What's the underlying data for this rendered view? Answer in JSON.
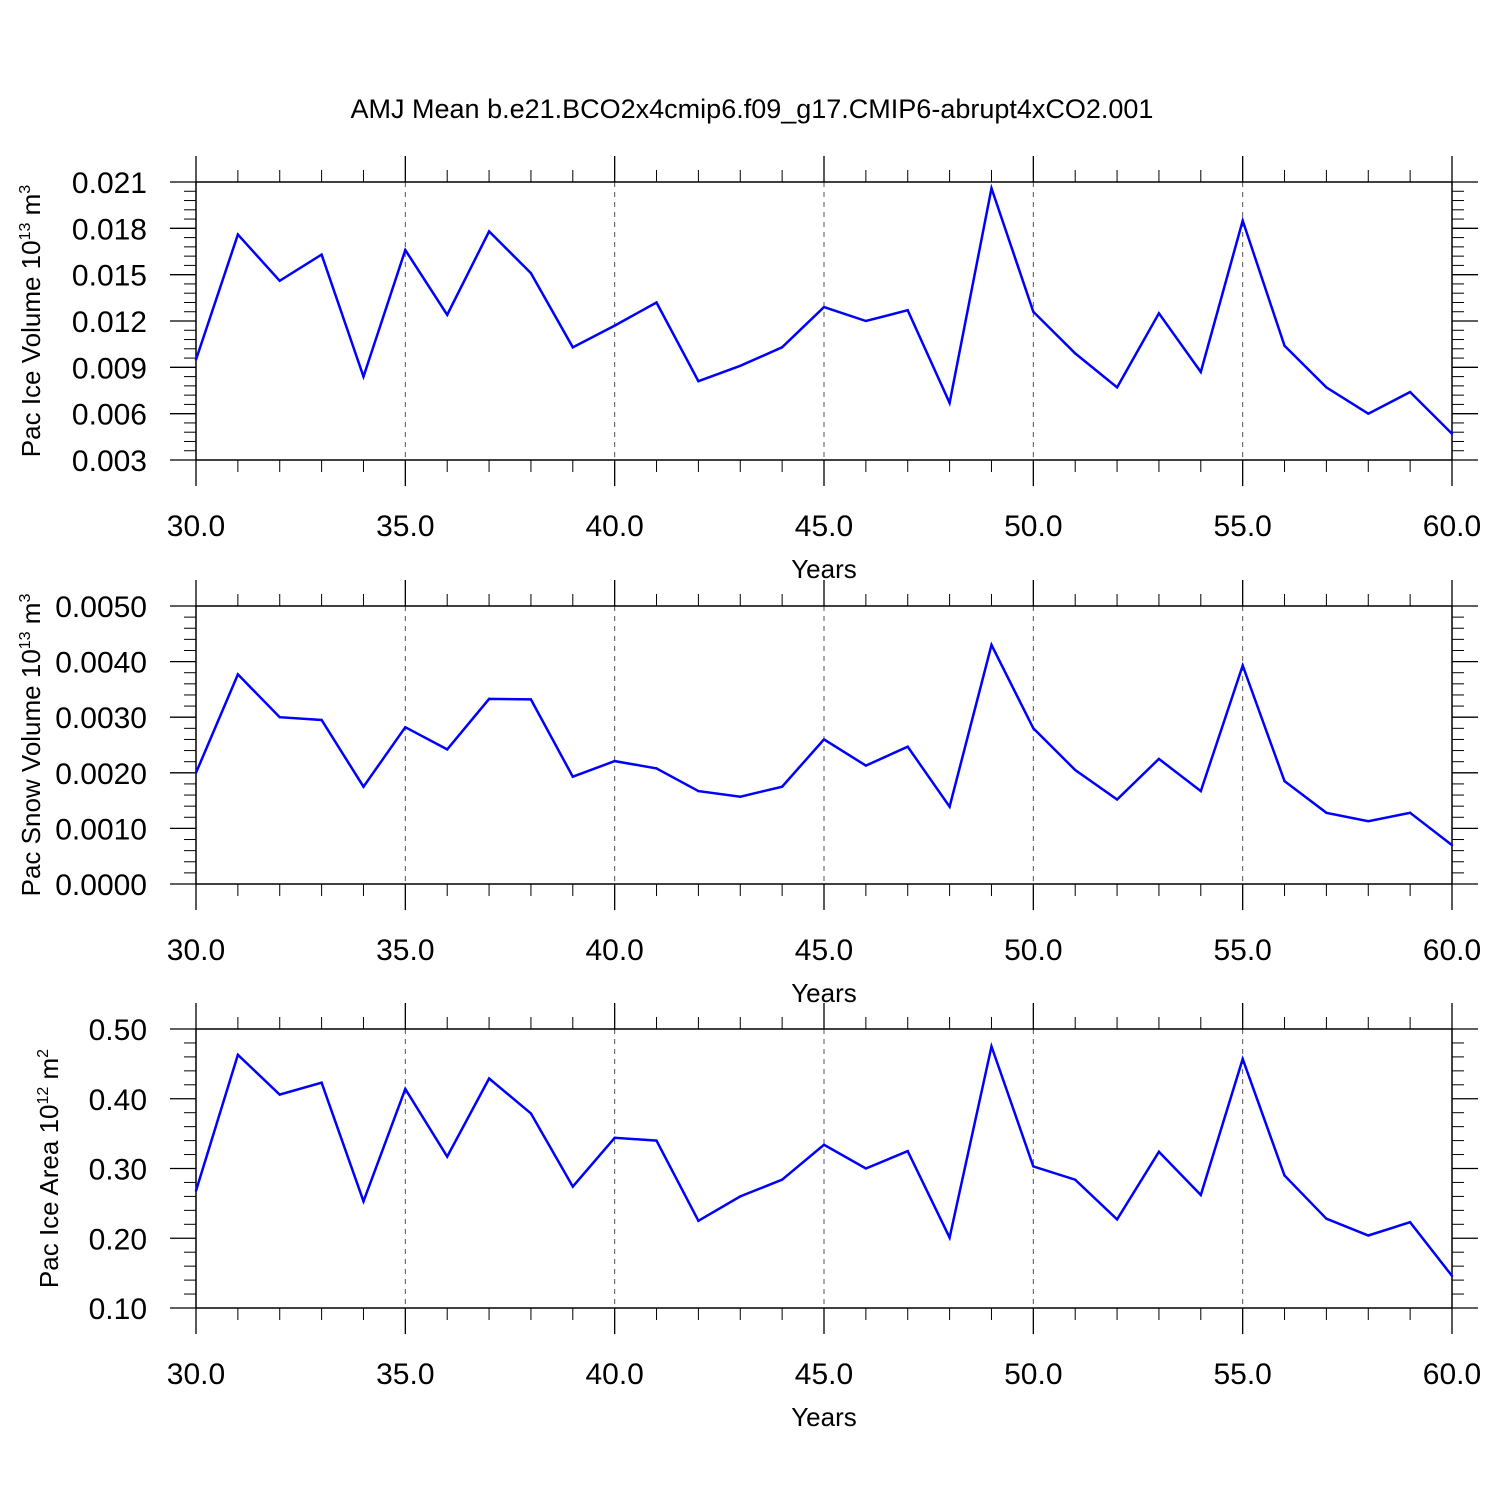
{
  "title": "AMJ Mean b.e21.BCO2x4cmip6.f09_g17.CMIP6-abrupt4xCO2.001",
  "colors": {
    "line": "#0000ff",
    "axis": "#000000",
    "grid": "#555555"
  },
  "chart_data": [
    {
      "type": "line",
      "ylabel": "Pac Ice Volume 10",
      "ylabel_exp": "13",
      "ylabel_unit": " m",
      "ylabel_unit_exp": "3",
      "xlabel": "Years",
      "xlim": [
        30,
        60
      ],
      "ylim": [
        0.003,
        0.021
      ],
      "x_ticks": [
        "30.0",
        "35.0",
        "40.0",
        "45.0",
        "50.0",
        "55.0",
        "60.0"
      ],
      "y_ticks": [
        "0.003",
        "0.006",
        "0.009",
        "0.012",
        "0.015",
        "0.018",
        "0.021"
      ],
      "grid": "vertical dashed at major x ticks",
      "x": [
        30,
        31,
        32,
        33,
        34,
        35,
        36,
        37,
        38,
        39,
        40,
        41,
        42,
        43,
        44,
        45,
        46,
        47,
        48,
        49,
        50,
        51,
        52,
        53,
        54,
        55,
        56,
        57,
        58,
        59,
        60
      ],
      "values": [
        0.0095,
        0.0176,
        0.0146,
        0.0163,
        0.0084,
        0.0166,
        0.0124,
        0.0178,
        0.0151,
        0.0103,
        0.0117,
        0.0132,
        0.0081,
        0.0091,
        0.0103,
        0.0129,
        0.012,
        0.0127,
        0.0067,
        0.0206,
        0.0126,
        0.0099,
        0.0077,
        0.0125,
        0.0087,
        0.0185,
        0.0104,
        0.0077,
        0.006,
        0.0074,
        0.0047
      ]
    },
    {
      "type": "line",
      "ylabel": "Pac Snow Volume 10",
      "ylabel_exp": "13",
      "ylabel_unit": " m",
      "ylabel_unit_exp": "3",
      "xlabel": "Years",
      "xlim": [
        30,
        60
      ],
      "ylim": [
        0.0,
        0.005
      ],
      "x_ticks": [
        "30.0",
        "35.0",
        "40.0",
        "45.0",
        "50.0",
        "55.0",
        "60.0"
      ],
      "y_ticks": [
        "0.0000",
        "0.0010",
        "0.0020",
        "0.0030",
        "0.0040",
        "0.0050"
      ],
      "grid": "vertical dashed at major x ticks",
      "x": [
        30,
        31,
        32,
        33,
        34,
        35,
        36,
        37,
        38,
        39,
        40,
        41,
        42,
        43,
        44,
        45,
        46,
        47,
        48,
        49,
        50,
        51,
        52,
        53,
        54,
        55,
        56,
        57,
        58,
        59,
        60
      ],
      "values": [
        0.002,
        0.00377,
        0.003,
        0.00295,
        0.00175,
        0.00282,
        0.00242,
        0.00333,
        0.00332,
        0.00193,
        0.00221,
        0.00208,
        0.00167,
        0.00157,
        0.00175,
        0.0026,
        0.00213,
        0.00247,
        0.00139,
        0.0043,
        0.0028,
        0.00205,
        0.00152,
        0.00225,
        0.00167,
        0.00393,
        0.00185,
        0.00128,
        0.00113,
        0.00128,
        0.0007
      ]
    },
    {
      "type": "line",
      "ylabel": "Pac Ice Area 10",
      "ylabel_exp": "12",
      "ylabel_unit": " m",
      "ylabel_unit_exp": "2",
      "xlabel": "Years",
      "xlim": [
        30,
        60
      ],
      "ylim": [
        0.1,
        0.5
      ],
      "x_ticks": [
        "30.0",
        "35.0",
        "40.0",
        "45.0",
        "50.0",
        "55.0",
        "60.0"
      ],
      "y_ticks": [
        "0.10",
        "0.20",
        "0.30",
        "0.40",
        "0.50"
      ],
      "grid": "vertical dashed at major x ticks",
      "x": [
        30,
        31,
        32,
        33,
        34,
        35,
        36,
        37,
        38,
        39,
        40,
        41,
        42,
        43,
        44,
        45,
        46,
        47,
        48,
        49,
        50,
        51,
        52,
        53,
        54,
        55,
        56,
        57,
        58,
        59,
        60
      ],
      "values": [
        0.268,
        0.463,
        0.406,
        0.423,
        0.253,
        0.414,
        0.317,
        0.429,
        0.379,
        0.274,
        0.344,
        0.34,
        0.225,
        0.26,
        0.284,
        0.334,
        0.3,
        0.325,
        0.201,
        0.475,
        0.303,
        0.284,
        0.227,
        0.324,
        0.262,
        0.457,
        0.29,
        0.228,
        0.204,
        0.223,
        0.146
      ]
    }
  ]
}
